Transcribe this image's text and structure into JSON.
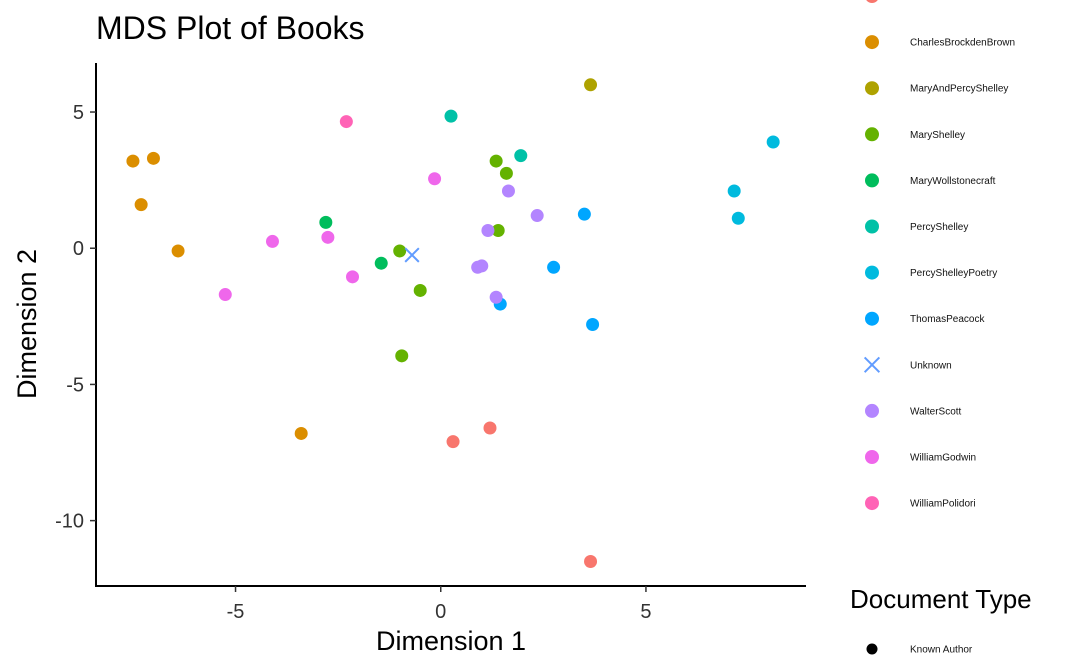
{
  "chart_data": {
    "type": "scatter",
    "title": "MDS Plot of Books",
    "xlabel": "Dimension 1",
    "ylabel": "Dimension 2",
    "xlim": [
      -8.4,
      8.9
    ],
    "ylim": [
      -12.4,
      6.8
    ],
    "x_ticks": [
      -5,
      0,
      5
    ],
    "y_ticks": [
      5,
      0,
      -5,
      -10
    ],
    "grid": false,
    "legend_placement": "right",
    "series": [
      {
        "name": "",
        "color": "#F8766D",
        "marker": "circle",
        "points": [
          [
            0.3,
            -7.1
          ],
          [
            1.2,
            -6.6
          ],
          [
            3.65,
            -11.5
          ]
        ]
      },
      {
        "name": "CharlesBrockdenBrown",
        "color": "#DB8E00",
        "marker": "circle",
        "points": [
          [
            -7.5,
            3.2
          ],
          [
            -7.0,
            3.3
          ],
          [
            -7.3,
            1.6
          ],
          [
            -6.4,
            -0.1
          ],
          [
            -3.4,
            -6.8
          ]
        ]
      },
      {
        "name": "MaryAndPercyShelley",
        "color": "#AEA200",
        "marker": "circle",
        "points": [
          [
            3.65,
            6.0
          ]
        ]
      },
      {
        "name": "MaryShelley",
        "color": "#64B200",
        "marker": "circle",
        "points": [
          [
            -1.0,
            -0.1
          ],
          [
            -0.5,
            -1.55
          ],
          [
            -0.95,
            -3.95
          ],
          [
            1.35,
            3.2
          ],
          [
            1.6,
            2.75
          ],
          [
            1.4,
            0.65
          ]
        ]
      },
      {
        "name": "MaryWollstonecraft",
        "color": "#00BD5C",
        "marker": "circle",
        "points": [
          [
            -2.8,
            0.95
          ],
          [
            -1.45,
            -0.55
          ]
        ]
      },
      {
        "name": "PercyShelley",
        "color": "#00C1A7",
        "marker": "circle",
        "points": [
          [
            0.25,
            4.85
          ],
          [
            1.95,
            3.4
          ]
        ]
      },
      {
        "name": "PercyShelleyPoetry",
        "color": "#00BADE",
        "marker": "circle",
        "points": [
          [
            8.1,
            3.9
          ],
          [
            7.15,
            2.1
          ],
          [
            7.25,
            1.1
          ]
        ]
      },
      {
        "name": "ThomasPeacock",
        "color": "#00A6FF",
        "marker": "circle",
        "points": [
          [
            3.5,
            1.25
          ],
          [
            2.75,
            -0.7
          ],
          [
            3.7,
            -2.8
          ],
          [
            1.45,
            -2.05
          ]
        ]
      },
      {
        "name": "Unknown",
        "color": "#619CFF",
        "marker": "cross",
        "points": [
          [
            -0.7,
            -0.25
          ]
        ]
      },
      {
        "name": "WalterScott",
        "color": "#B385FF",
        "marker": "circle",
        "points": [
          [
            1.65,
            2.1
          ],
          [
            2.35,
            1.2
          ],
          [
            1.15,
            0.65
          ],
          [
            0.9,
            -0.7
          ],
          [
            1.0,
            -0.65
          ],
          [
            1.35,
            -1.8
          ]
        ]
      },
      {
        "name": "WilliamGodwin",
        "color": "#EF67EB",
        "marker": "circle",
        "points": [
          [
            -0.15,
            2.55
          ],
          [
            -4.1,
            0.25
          ],
          [
            -2.75,
            0.4
          ],
          [
            -2.15,
            -1.05
          ],
          [
            -5.25,
            -1.7
          ]
        ]
      },
      {
        "name": "WilliamPolidori",
        "color": "#FF63B6",
        "marker": "circle",
        "points": [
          [
            -2.3,
            4.65
          ]
        ]
      }
    ],
    "legend_title_2": "Document Type",
    "legend_entries_2": [
      {
        "label": "Known Author",
        "color": "#000000",
        "marker": "circle"
      }
    ]
  }
}
